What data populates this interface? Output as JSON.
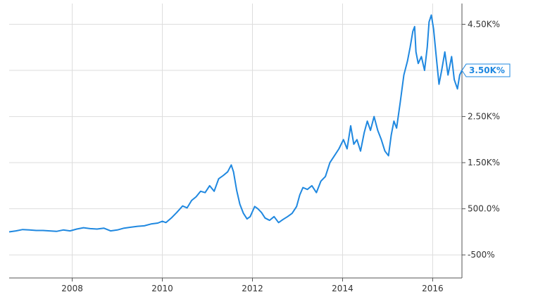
{
  "chart_data": {
    "type": "line",
    "title": "",
    "xlabel": "",
    "ylabel": "",
    "xlim": [
      2006.6,
      2016.65
    ],
    "ylim": [
      -1000,
      4950
    ],
    "y_axis_side": "right",
    "grid": true,
    "legend": "none",
    "x_ticks": [
      {
        "value": 2008,
        "label": "2008"
      },
      {
        "value": 2010,
        "label": "2010"
      },
      {
        "value": 2012,
        "label": "2012"
      },
      {
        "value": 2014,
        "label": "2014"
      },
      {
        "value": 2016,
        "label": "2016"
      }
    ],
    "y_ticks": [
      {
        "value": 4500,
        "label": "4.50K%"
      },
      {
        "value": 3500,
        "label": ""
      },
      {
        "value": 2500,
        "label": "2.50K%"
      },
      {
        "value": 1500,
        "label": "1.50K%"
      },
      {
        "value": 500,
        "label": "500.0%"
      },
      {
        "value": -500,
        "label": "-500%"
      }
    ],
    "last_value_label": "3.50K%",
    "colors": {
      "line": "#1f88e0",
      "grid": "#dddddd",
      "axis": "#555555",
      "callout_border": "#1f88e0",
      "callout_text": "#1f88e0",
      "background": "#ffffff"
    },
    "series": [
      {
        "points": [
          [
            2006.6,
            0
          ],
          [
            2006.75,
            20
          ],
          [
            2006.9,
            50
          ],
          [
            2007.05,
            40
          ],
          [
            2007.2,
            30
          ],
          [
            2007.35,
            30
          ],
          [
            2007.5,
            20
          ],
          [
            2007.65,
            10
          ],
          [
            2007.8,
            40
          ],
          [
            2007.95,
            20
          ],
          [
            2008.1,
            60
          ],
          [
            2008.25,
            90
          ],
          [
            2008.4,
            70
          ],
          [
            2008.55,
            60
          ],
          [
            2008.7,
            80
          ],
          [
            2008.85,
            20
          ],
          [
            2009.0,
            40
          ],
          [
            2009.15,
            80
          ],
          [
            2009.3,
            100
          ],
          [
            2009.45,
            120
          ],
          [
            2009.6,
            130
          ],
          [
            2009.75,
            170
          ],
          [
            2009.9,
            190
          ],
          [
            2010.0,
            230
          ],
          [
            2010.08,
            200
          ],
          [
            2010.2,
            300
          ],
          [
            2010.32,
            420
          ],
          [
            2010.45,
            560
          ],
          [
            2010.55,
            520
          ],
          [
            2010.65,
            680
          ],
          [
            2010.75,
            760
          ],
          [
            2010.85,
            880
          ],
          [
            2010.95,
            850
          ],
          [
            2011.05,
            1000
          ],
          [
            2011.15,
            880
          ],
          [
            2011.25,
            1150
          ],
          [
            2011.35,
            1220
          ],
          [
            2011.45,
            1300
          ],
          [
            2011.53,
            1450
          ],
          [
            2011.58,
            1300
          ],
          [
            2011.65,
            900
          ],
          [
            2011.72,
            600
          ],
          [
            2011.8,
            400
          ],
          [
            2011.88,
            280
          ],
          [
            2011.95,
            330
          ],
          [
            2012.05,
            550
          ],
          [
            2012.12,
            500
          ],
          [
            2012.2,
            420
          ],
          [
            2012.28,
            300
          ],
          [
            2012.38,
            250
          ],
          [
            2012.48,
            330
          ],
          [
            2012.58,
            200
          ],
          [
            2012.68,
            270
          ],
          [
            2012.78,
            330
          ],
          [
            2012.88,
            400
          ],
          [
            2012.98,
            550
          ],
          [
            2013.05,
            800
          ],
          [
            2013.12,
            960
          ],
          [
            2013.22,
            920
          ],
          [
            2013.32,
            1000
          ],
          [
            2013.42,
            850
          ],
          [
            2013.52,
            1100
          ],
          [
            2013.62,
            1200
          ],
          [
            2013.72,
            1500
          ],
          [
            2013.82,
            1650
          ],
          [
            2013.92,
            1800
          ],
          [
            2014.02,
            2000
          ],
          [
            2014.1,
            1800
          ],
          [
            2014.18,
            2300
          ],
          [
            2014.25,
            1900
          ],
          [
            2014.32,
            2000
          ],
          [
            2014.4,
            1750
          ],
          [
            2014.48,
            2150
          ],
          [
            2014.55,
            2400
          ],
          [
            2014.62,
            2200
          ],
          [
            2014.7,
            2500
          ],
          [
            2014.78,
            2200
          ],
          [
            2014.86,
            2000
          ],
          [
            2014.94,
            1750
          ],
          [
            2015.02,
            1650
          ],
          [
            2015.08,
            2100
          ],
          [
            2015.14,
            2400
          ],
          [
            2015.2,
            2250
          ],
          [
            2015.28,
            2800
          ],
          [
            2015.36,
            3400
          ],
          [
            2015.44,
            3700
          ],
          [
            2015.5,
            4000
          ],
          [
            2015.56,
            4350
          ],
          [
            2015.6,
            4450
          ],
          [
            2015.63,
            3900
          ],
          [
            2015.68,
            3650
          ],
          [
            2015.75,
            3800
          ],
          [
            2015.82,
            3500
          ],
          [
            2015.88,
            4000
          ],
          [
            2015.92,
            4550
          ],
          [
            2015.97,
            4700
          ],
          [
            2016.02,
            4400
          ],
          [
            2016.08,
            3800
          ],
          [
            2016.14,
            3200
          ],
          [
            2016.2,
            3500
          ],
          [
            2016.27,
            3900
          ],
          [
            2016.34,
            3400
          ],
          [
            2016.42,
            3800
          ],
          [
            2016.48,
            3300
          ],
          [
            2016.55,
            3100
          ],
          [
            2016.6,
            3400
          ],
          [
            2016.65,
            3500
          ]
        ]
      }
    ]
  }
}
